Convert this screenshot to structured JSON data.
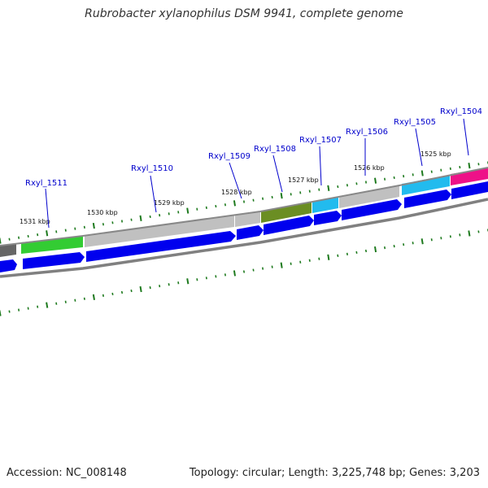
{
  "title": "Rubrobacter xylanophilus DSM 9941, complete genome",
  "footer": {
    "accession": "Accession: NC_008148",
    "summary": "Topology: circular; Length: 3,225,748 bp; Genes: 3,203"
  },
  "colors": {
    "forward_cds": "#0000ee",
    "gene_label": "#0000cc",
    "tick": "#1e7a1e",
    "backbone": "#888888",
    "green_gene": "#33cc33",
    "olive_gene": "#6b8e23",
    "cyan_gene": "#22bbee",
    "magenta_gene": "#ee1188",
    "gray_gene": "#c0c0c0"
  },
  "gene_labels": [
    "Rxyl_1504",
    "Rxyl_1505",
    "Rxyl_1506",
    "Rxyl_1507",
    "Rxyl_1508",
    "Rxyl_1509",
    "Rxyl_1510",
    "Rxyl_1511"
  ],
  "kbp_labels": [
    "1525 kbp",
    "1526 kbp",
    "1527 kbp",
    "1528 kbp",
    "1529 kbp",
    "1530 kbp",
    "1531 kbp"
  ]
}
